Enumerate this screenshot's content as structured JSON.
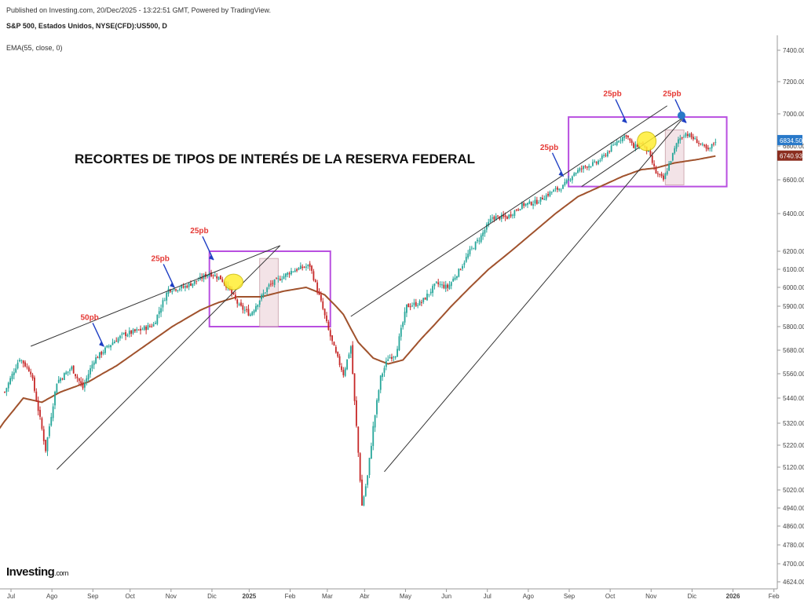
{
  "header": {
    "published": "Published on Investing.com, 20/Dec/2025 - 13:22:51 GMT, Powered by TradingView.",
    "instrument": "S&P 500, Estados Unidos, NYSE(CFD):US500, D",
    "indicator": "EMA(55, close, 0)"
  },
  "logo": {
    "main": "Investing",
    "suffix": ".com"
  },
  "colors": {
    "up": "#26a69a",
    "down": "#c62828",
    "ema": "#a0522d",
    "trend": "#333333",
    "box": "#b84fe0",
    "arrow": "#1f3fc4",
    "label": "#e53935",
    "highlight": "#ffee33",
    "price_badge": "#2979c9",
    "ema_badge": "#8b2d1f"
  },
  "chart_data": {
    "type": "candlestick",
    "title": "RECORTES DE TIPOS DE INTERÉS DE LA RESERVA FEDERAL",
    "y_ticks": [
      7400,
      7200,
      7000,
      6800,
      6600,
      6400,
      6200,
      6100,
      6000,
      5900,
      5800,
      5680,
      5560,
      5440,
      5320,
      5220,
      5120,
      5020,
      4940,
      4860,
      4780,
      4700,
      4624
    ],
    "y_tick_labels": [
      "7400.00",
      "7200.00",
      "7000.00",
      "6800.00",
      "6600.00",
      "6400.00",
      "6200.00",
      "6100.00",
      "6000.00",
      "5900.00",
      "5800.00",
      "5680.00",
      "5560.00",
      "5440.00",
      "5320.00",
      "5220.00",
      "5120.00",
      "5020.00",
      "4940.00",
      "4860.00",
      "4780.00",
      "4700.00",
      "4624.00"
    ],
    "x_ticks": [
      {
        "label": "Jul",
        "i": 0
      },
      {
        "label": "Ago",
        "i": 22
      },
      {
        "label": "Sep",
        "i": 44
      },
      {
        "label": "Oct",
        "i": 64
      },
      {
        "label": "Nov",
        "i": 86
      },
      {
        "label": "Dic",
        "i": 108
      },
      {
        "label": "2025",
        "i": 128
      },
      {
        "label": "Feb",
        "i": 150
      },
      {
        "label": "Mar",
        "i": 170
      },
      {
        "label": "Abr",
        "i": 190
      },
      {
        "label": "May",
        "i": 212
      },
      {
        "label": "Jun",
        "i": 234
      },
      {
        "label": "Jul",
        "i": 256
      },
      {
        "label": "Ago",
        "i": 278
      },
      {
        "label": "Sep",
        "i": 300
      },
      {
        "label": "Oct",
        "i": 322
      },
      {
        "label": "Nov",
        "i": 344
      },
      {
        "label": "Dic",
        "i": 366
      },
      {
        "label": "2026",
        "i": 388
      },
      {
        "label": "Feb",
        "i": 410
      }
    ],
    "close_anchors": [
      [
        0,
        5470
      ],
      [
        8,
        5640
      ],
      [
        14,
        5570
      ],
      [
        22,
        5200
      ],
      [
        28,
        5520
      ],
      [
        36,
        5590
      ],
      [
        42,
        5490
      ],
      [
        48,
        5630
      ],
      [
        58,
        5720
      ],
      [
        64,
        5760
      ],
      [
        72,
        5780
      ],
      [
        80,
        5810
      ],
      [
        88,
        5990
      ],
      [
        96,
        6000
      ],
      [
        104,
        6040
      ],
      [
        110,
        6080
      ],
      [
        116,
        6050
      ],
      [
        120,
        6000
      ],
      [
        126,
        5900
      ],
      [
        132,
        5860
      ],
      [
        138,
        5950
      ],
      [
        142,
        6010
      ],
      [
        148,
        6050
      ],
      [
        154,
        6090
      ],
      [
        160,
        6110
      ],
      [
        164,
        6120
      ],
      [
        170,
        5920
      ],
      [
        174,
        5780
      ],
      [
        178,
        5660
      ],
      [
        182,
        5560
      ],
      [
        186,
        5700
      ],
      [
        188,
        5420
      ],
      [
        192,
        4950
      ],
      [
        195,
        5080
      ],
      [
        198,
        5300
      ],
      [
        202,
        5540
      ],
      [
        206,
        5640
      ],
      [
        210,
        5660
      ],
      [
        216,
        5900
      ],
      [
        224,
        5920
      ],
      [
        232,
        6020
      ],
      [
        238,
        6000
      ],
      [
        244,
        6090
      ],
      [
        250,
        6200
      ],
      [
        256,
        6280
      ],
      [
        262,
        6380
      ],
      [
        270,
        6380
      ],
      [
        278,
        6450
      ],
      [
        286,
        6470
      ],
      [
        294,
        6530
      ],
      [
        300,
        6560
      ],
      [
        306,
        6640
      ],
      [
        312,
        6680
      ],
      [
        318,
        6700
      ],
      [
        322,
        6740
      ],
      [
        326,
        6790
      ],
      [
        330,
        6840
      ],
      [
        334,
        6870
      ],
      [
        338,
        6790
      ],
      [
        342,
        6820
      ],
      [
        346,
        6760
      ],
      [
        350,
        6640
      ],
      [
        354,
        6600
      ],
      [
        358,
        6720
      ],
      [
        362,
        6840
      ],
      [
        366,
        6880
      ],
      [
        372,
        6830
      ],
      [
        378,
        6770
      ],
      [
        382,
        6834.5
      ]
    ],
    "ema_anchors": [
      [
        0,
        5330
      ],
      [
        10,
        5440
      ],
      [
        20,
        5420
      ],
      [
        30,
        5470
      ],
      [
        45,
        5520
      ],
      [
        60,
        5600
      ],
      [
        75,
        5700
      ],
      [
        90,
        5800
      ],
      [
        105,
        5880
      ],
      [
        115,
        5920
      ],
      [
        125,
        5950
      ],
      [
        138,
        5950
      ],
      [
        150,
        5980
      ],
      [
        162,
        6000
      ],
      [
        172,
        5960
      ],
      [
        182,
        5860
      ],
      [
        190,
        5720
      ],
      [
        198,
        5640
      ],
      [
        206,
        5610
      ],
      [
        214,
        5630
      ],
      [
        224,
        5740
      ],
      [
        236,
        5860
      ],
      [
        248,
        5980
      ],
      [
        260,
        6100
      ],
      [
        272,
        6200
      ],
      [
        284,
        6300
      ],
      [
        296,
        6400
      ],
      [
        308,
        6500
      ],
      [
        320,
        6560
      ],
      [
        332,
        6620
      ],
      [
        342,
        6660
      ],
      [
        350,
        6670
      ],
      [
        360,
        6700
      ],
      [
        372,
        6720
      ],
      [
        382,
        6740.93
      ]
    ],
    "current_price": "6834.50",
    "ema_value": "6740.93",
    "legend": "EMA(55, close, 0)",
    "annotations": [
      {
        "text": "50pb",
        "bar": 49,
        "price": 5810
      },
      {
        "text": "25pb",
        "bar": 87,
        "price": 6120
      },
      {
        "text": "25pb",
        "bar": 108,
        "price": 6270
      },
      {
        "text": "25pb",
        "bar": 296,
        "price": 6750
      },
      {
        "text": "25pb",
        "bar": 330,
        "price": 7080
      },
      {
        "text": "25pb",
        "bar": 362,
        "price": 7080
      }
    ],
    "grid": false
  }
}
